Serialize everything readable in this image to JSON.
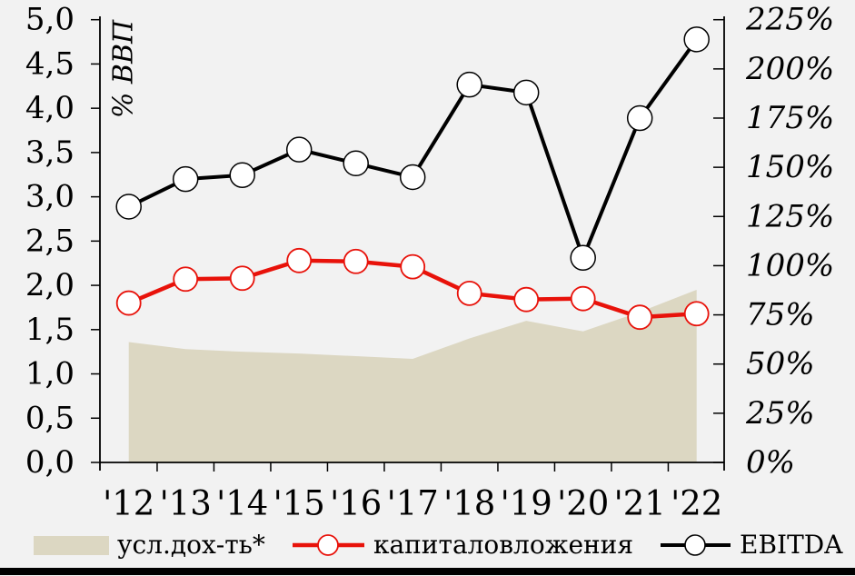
{
  "page": {
    "background": "#f2f2f2"
  },
  "chart_data": {
    "type": "combo-area-line",
    "categories": [
      "'12",
      "'13",
      "'14",
      "'15",
      "'16",
      "'17",
      "'18",
      "'19",
      "'20",
      "'21",
      "'22"
    ],
    "series": [
      {
        "name": "усл.дох-ть*",
        "type": "area",
        "axis": "left",
        "color": "#dcd7c2",
        "values": [
          1.36,
          1.28,
          1.25,
          1.23,
          1.2,
          1.17,
          1.4,
          1.6,
          1.48,
          1.7,
          1.95
        ]
      },
      {
        "name": "капиталовложения",
        "type": "line",
        "marker": "open-circle",
        "axis": "left",
        "color": "#e8120a",
        "values": [
          1.8,
          2.07,
          2.08,
          2.28,
          2.27,
          2.21,
          1.91,
          1.84,
          1.85,
          1.64,
          1.68
        ]
      },
      {
        "name": "EBITDA",
        "type": "line",
        "marker": "open-circle",
        "axis": "right",
        "color": "#000000",
        "values": [
          130,
          144,
          146,
          159,
          152,
          145,
          192,
          188,
          104,
          175,
          215
        ]
      }
    ],
    "left_axis": {
      "label": "% ВВП",
      "min": 0,
      "max": 5,
      "step": 0.5,
      "tick_labels": [
        "5,0",
        "4,5",
        "4,0",
        "3,5",
        "3,0",
        "2,5",
        "2,0",
        "1,5",
        "1,0",
        "0,5",
        "0,0"
      ]
    },
    "right_axis": {
      "min": 0,
      "max": 225,
      "step": 25,
      "tick_labels": [
        "225%",
        "200%",
        "175%",
        "150%",
        "125%",
        "100%",
        "75%",
        "50%",
        "25%",
        "0%"
      ]
    },
    "x_axis": {
      "tick_labels": [
        "'12",
        "'13",
        "'14",
        "'15",
        "'16",
        "'17",
        "'18",
        "'19",
        "'20",
        "'21",
        "'22"
      ]
    },
    "grid": false,
    "legend_position": "bottom"
  }
}
